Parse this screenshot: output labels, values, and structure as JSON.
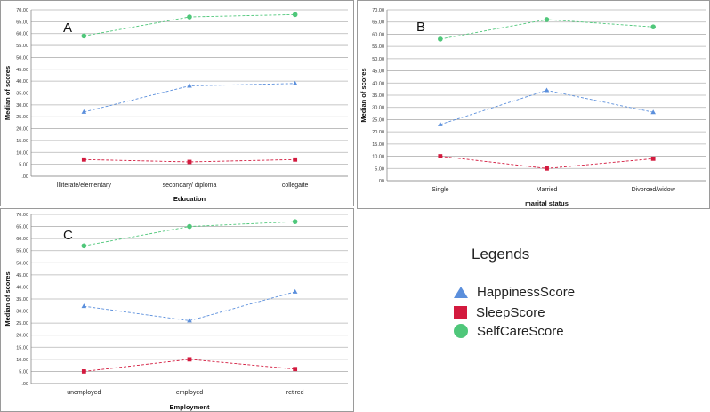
{
  "legend": {
    "title": "Legends",
    "items": [
      {
        "label": "HappinessScore",
        "color": "#5b8fdc",
        "icon": "triangle-icon"
      },
      {
        "label": "SleepScore",
        "color": "#d31a3e",
        "icon": "square-icon"
      },
      {
        "label": "SelfCareScore",
        "color": "#4fc77a",
        "icon": "circle-icon"
      }
    ]
  },
  "chart_data": [
    {
      "type": "line",
      "panel_label": "A",
      "xlabel": "Education",
      "ylabel": "Median of scores",
      "ylim": [
        0,
        70
      ],
      "yticks": [
        "70.00",
        "65.00",
        "60.00",
        "55.00",
        "50.00",
        "45.00",
        "40.00",
        "35.00",
        "30.00",
        "25.00",
        "20.00",
        "15.00",
        "10.00",
        "5.00",
        ".00"
      ],
      "categories": [
        "Illiterate/elementary",
        "secondary/ diploma",
        "collegaite"
      ],
      "series": [
        {
          "name": "HappinessScore",
          "values": [
            27,
            38,
            39
          ],
          "color": "#5b8fdc",
          "marker": "triangle"
        },
        {
          "name": "SleepScore",
          "values": [
            7,
            6,
            7
          ],
          "color": "#d31a3e",
          "marker": "square"
        },
        {
          "name": "SelfCareScore",
          "values": [
            59,
            67,
            68
          ],
          "color": "#4fc77a",
          "marker": "circle"
        }
      ],
      "grid": true
    },
    {
      "type": "line",
      "panel_label": "B",
      "xlabel": "marital status",
      "ylabel": "Median of scores",
      "ylim": [
        0,
        70
      ],
      "yticks": [
        "70.00",
        "65.00",
        "60.00",
        "55.00",
        "50.00",
        "45.00",
        "40.00",
        "35.00",
        "30.00",
        "25.00",
        "20.00",
        "15.00",
        "10.00",
        "5.00",
        ".00"
      ],
      "categories": [
        "Single",
        "Married",
        "Divorced/widow"
      ],
      "series": [
        {
          "name": "HappinessScore",
          "values": [
            23,
            37,
            28
          ],
          "color": "#5b8fdc",
          "marker": "triangle"
        },
        {
          "name": "SleepScore",
          "values": [
            10,
            5,
            9
          ],
          "color": "#d31a3e",
          "marker": "square"
        },
        {
          "name": "SelfCareScore",
          "values": [
            58,
            66,
            63
          ],
          "color": "#4fc77a",
          "marker": "circle"
        }
      ],
      "grid": true
    },
    {
      "type": "line",
      "panel_label": "C",
      "xlabel": "Employment",
      "ylabel": "Median of scores",
      "ylim": [
        0,
        70
      ],
      "yticks": [
        "70.00",
        "65.00",
        "60.00",
        "55.00",
        "50.00",
        "45.00",
        "40.00",
        "35.00",
        "30.00",
        "25.00",
        "20.00",
        "15.00",
        "10.00",
        "5.00",
        ".00"
      ],
      "categories": [
        "unemployed",
        "employed",
        "retired"
      ],
      "series": [
        {
          "name": "HappinessScore",
          "values": [
            32,
            26,
            38
          ],
          "color": "#5b8fdc",
          "marker": "triangle"
        },
        {
          "name": "SleepScore",
          "values": [
            5,
            10,
            6
          ],
          "color": "#d31a3e",
          "marker": "square"
        },
        {
          "name": "SelfCareScore",
          "values": [
            57,
            65,
            67
          ],
          "color": "#4fc77a",
          "marker": "circle"
        }
      ],
      "grid": true
    }
  ]
}
